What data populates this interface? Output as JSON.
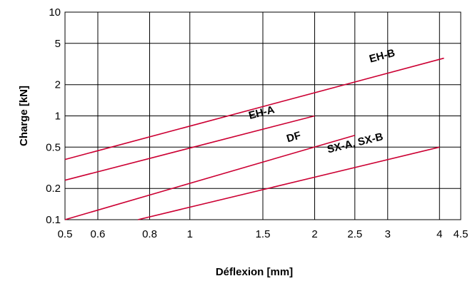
{
  "chart_data": {
    "type": "line",
    "title": "",
    "xlabel": "Déflexion [mm]",
    "ylabel": "Charge [kN]",
    "x_scale": "log",
    "y_scale": "log",
    "xlim": [
      0.5,
      4.5
    ],
    "ylim": [
      0.1,
      10
    ],
    "x_ticks": [
      {
        "value": 0.5,
        "label": "0.5"
      },
      {
        "value": 0.6,
        "label": "0.6"
      },
      {
        "value": 0.8,
        "label": "0.8"
      },
      {
        "value": 1,
        "label": "1"
      },
      {
        "value": 1.5,
        "label": "1.5"
      },
      {
        "value": 2,
        "label": "2"
      },
      {
        "value": 2.5,
        "label": "2.5"
      },
      {
        "value": 3,
        "label": "3"
      },
      {
        "value": 4,
        "label": "4"
      },
      {
        "value": 4.5,
        "label": "4.5"
      }
    ],
    "y_ticks": [
      {
        "value": 0.1,
        "label": "0.1"
      },
      {
        "value": 0.2,
        "label": "0.2"
      },
      {
        "value": 0.5,
        "label": "0.5"
      },
      {
        "value": 1,
        "label": "1"
      },
      {
        "value": 2,
        "label": "2"
      },
      {
        "value": 5,
        "label": "5"
      },
      {
        "value": 10,
        "label": "10"
      }
    ],
    "grid": true,
    "series_color": "#cc0033",
    "series": [
      {
        "name": "EH-B",
        "x": [
          0.5,
          4.1
        ],
        "y": [
          0.38,
          3.6
        ]
      },
      {
        "name": "EH-A",
        "x": [
          0.5,
          2.0
        ],
        "y": [
          0.24,
          1.0
        ]
      },
      {
        "name": "DF",
        "x": [
          0.5,
          2.5
        ],
        "y": [
          0.1,
          0.65
        ]
      },
      {
        "name": "SX-A, SX-B",
        "x": [
          0.75,
          4.0
        ],
        "y": [
          0.1,
          0.5
        ]
      }
    ]
  }
}
